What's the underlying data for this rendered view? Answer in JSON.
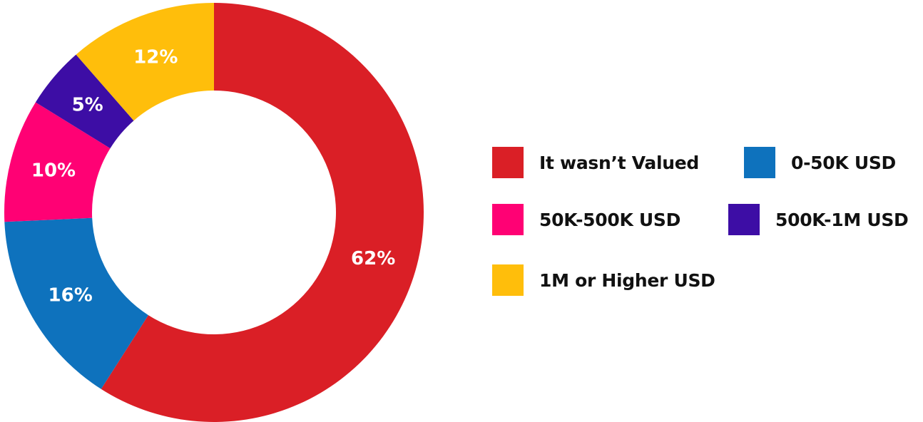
{
  "chart_data": {
    "type": "pie",
    "title": "",
    "series": [
      {
        "name": "It wasn’t Valued",
        "value": 62,
        "label": "62%",
        "color": "#DA1F26"
      },
      {
        "name": "0-50K USD",
        "value": 16,
        "label": "16%",
        "color": "#0E72BD"
      },
      {
        "name": "50K-500K USD",
        "value": 10,
        "label": "10%",
        "color": "#FF0174"
      },
      {
        "name": "500K-1M USD",
        "value": 5,
        "label": "5%",
        "color": "#3D0DA5"
      },
      {
        "name": "1M or Higher USD",
        "value": 12,
        "label": "12%",
        "color": "#FFBE0B"
      }
    ],
    "donut": true,
    "legend_position": "right"
  }
}
